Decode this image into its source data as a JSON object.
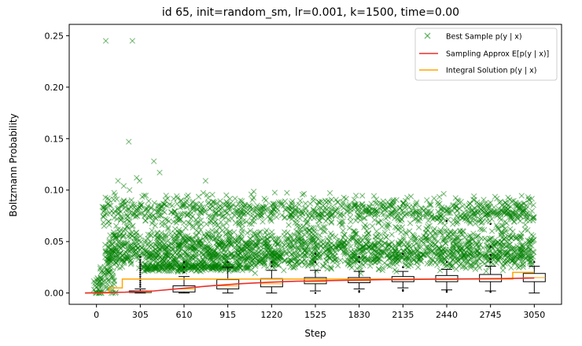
{
  "chart_data": {
    "type": "scatter",
    "title": "id 65, init=random_sm, lr=0.001, k=1500, time=0.00",
    "xlabel": "Step",
    "ylabel": "Boltzmann Probability",
    "xlim": [
      -190,
      3240
    ],
    "ylim": [
      -0.011,
      0.261
    ],
    "x_ticks": [
      0,
      305,
      610,
      915,
      1220,
      1525,
      1830,
      2135,
      2440,
      2745,
      3050
    ],
    "y_ticks": [
      0.0,
      0.05,
      0.1,
      0.15,
      0.2,
      0.25
    ],
    "y_tick_labels": [
      "0.00",
      "0.05",
      "0.10",
      "0.15",
      "0.20",
      "0.25"
    ],
    "legend_position": "top-right",
    "legend": [
      {
        "label": "Best Sample p(y | x)",
        "color": "#008000",
        "marker": "x"
      },
      {
        "label": "Sampling Approx E[p(y | x)]",
        "color": "#e8302a",
        "marker": "line"
      },
      {
        "label": "Integral Solution p(y | x)",
        "color": "#ffa500",
        "marker": "line"
      }
    ],
    "best_sample_outliers": [
      {
        "x": 65,
        "y": 0.245
      },
      {
        "x": 250,
        "y": 0.245
      },
      {
        "x": 225,
        "y": 0.147
      },
      {
        "x": 400,
        "y": 0.128
      },
      {
        "x": 440,
        "y": 0.117
      },
      {
        "x": 760,
        "y": 0.109
      },
      {
        "x": 130,
        "y": 0.095
      },
      {
        "x": 150,
        "y": 0.109
      },
      {
        "x": 190,
        "y": 0.104
      },
      {
        "x": 280,
        "y": 0.112
      },
      {
        "x": 300,
        "y": 0.109
      },
      {
        "x": 230,
        "y": 0.1
      },
      {
        "x": 1180,
        "y": 0.09
      },
      {
        "x": 2630,
        "y": 0.094
      }
    ],
    "best_sample_bands": [
      {
        "x_start": 40,
        "x_end": 3050,
        "center": 0.08,
        "spread": 0.007
      },
      {
        "x_start": 60,
        "x_end": 3050,
        "center": 0.048,
        "spread": 0.008
      },
      {
        "x_start": 60,
        "x_end": 3050,
        "center": 0.035,
        "spread": 0.006
      },
      {
        "x_start": 320,
        "x_end": 1050,
        "center": 0.025,
        "spread": 0.002
      }
    ],
    "sampling_approx": {
      "x": [
        -80,
        200,
        400,
        600,
        800,
        1000,
        1200,
        1400,
        1600,
        1800,
        2000,
        2400,
        2800,
        3050
      ],
      "y": [
        0.0,
        0.0008,
        0.002,
        0.0045,
        0.007,
        0.009,
        0.0105,
        0.0115,
        0.012,
        0.0125,
        0.013,
        0.0135,
        0.014,
        0.0145
      ]
    },
    "integral_solution": {
      "x": [
        -80,
        90,
        90,
        180,
        180,
        2900,
        2900,
        3050
      ],
      "y": [
        0.0,
        0.0,
        0.005,
        0.005,
        0.0135,
        0.0135,
        0.02,
        0.02
      ]
    },
    "boxplots": [
      {
        "x": 305,
        "q1": 0.0005,
        "median": 0.001,
        "q3": 0.002,
        "whisker_low": 0.0,
        "whisker_high": 0.004,
        "outliers": [
          0.006,
          0.008,
          0.01,
          0.012,
          0.014,
          0.016,
          0.018,
          0.02,
          0.022,
          0.024,
          0.026,
          0.028,
          0.03,
          0.032,
          0.035
        ]
      },
      {
        "x": 610,
        "q1": 0.001,
        "median": 0.004,
        "q3": 0.007,
        "whisker_low": 0.0,
        "whisker_high": 0.016,
        "outliers": [
          0.02,
          0.025,
          0.03
        ]
      },
      {
        "x": 915,
        "q1": 0.004,
        "median": 0.007,
        "q3": 0.013,
        "whisker_low": 0.0,
        "whisker_high": 0.025,
        "outliers": [
          0.03
        ]
      },
      {
        "x": 1220,
        "q1": 0.006,
        "median": 0.009,
        "q3": 0.014,
        "whisker_low": 0.0,
        "whisker_high": 0.022,
        "outliers": [
          0.026,
          0.03
        ]
      },
      {
        "x": 1525,
        "q1": 0.009,
        "median": 0.011,
        "q3": 0.015,
        "whisker_low": 0.002,
        "whisker_high": 0.022,
        "outliers": [
          0.0,
          0.03,
          0.038
        ]
      },
      {
        "x": 1830,
        "q1": 0.01,
        "median": 0.012,
        "q3": 0.015,
        "whisker_low": 0.004,
        "whisker_high": 0.021,
        "outliers": [
          0.002,
          0.001,
          0.03,
          0.035
        ]
      },
      {
        "x": 2135,
        "q1": 0.011,
        "median": 0.013,
        "q3": 0.016,
        "whisker_low": 0.005,
        "whisker_high": 0.021,
        "outliers": [
          0.003,
          0.002,
          0.025,
          0.038
        ]
      },
      {
        "x": 2440,
        "q1": 0.011,
        "median": 0.013,
        "q3": 0.017,
        "whisker_low": 0.003,
        "whisker_high": 0.023,
        "outliers": [
          0.002,
          0.001,
          0.03,
          0.07
        ]
      },
      {
        "x": 2745,
        "q1": 0.011,
        "median": 0.014,
        "q3": 0.018,
        "whisker_low": 0.002,
        "whisker_high": 0.026,
        "outliers": [
          0.001,
          0.03,
          0.033,
          0.037,
          0.045,
          0.067
        ]
      },
      {
        "x": 3050,
        "q1": 0.011,
        "median": 0.015,
        "q3": 0.019,
        "whisker_low": 0.0,
        "whisker_high": 0.026,
        "outliers": [
          0.03
        ]
      }
    ]
  }
}
